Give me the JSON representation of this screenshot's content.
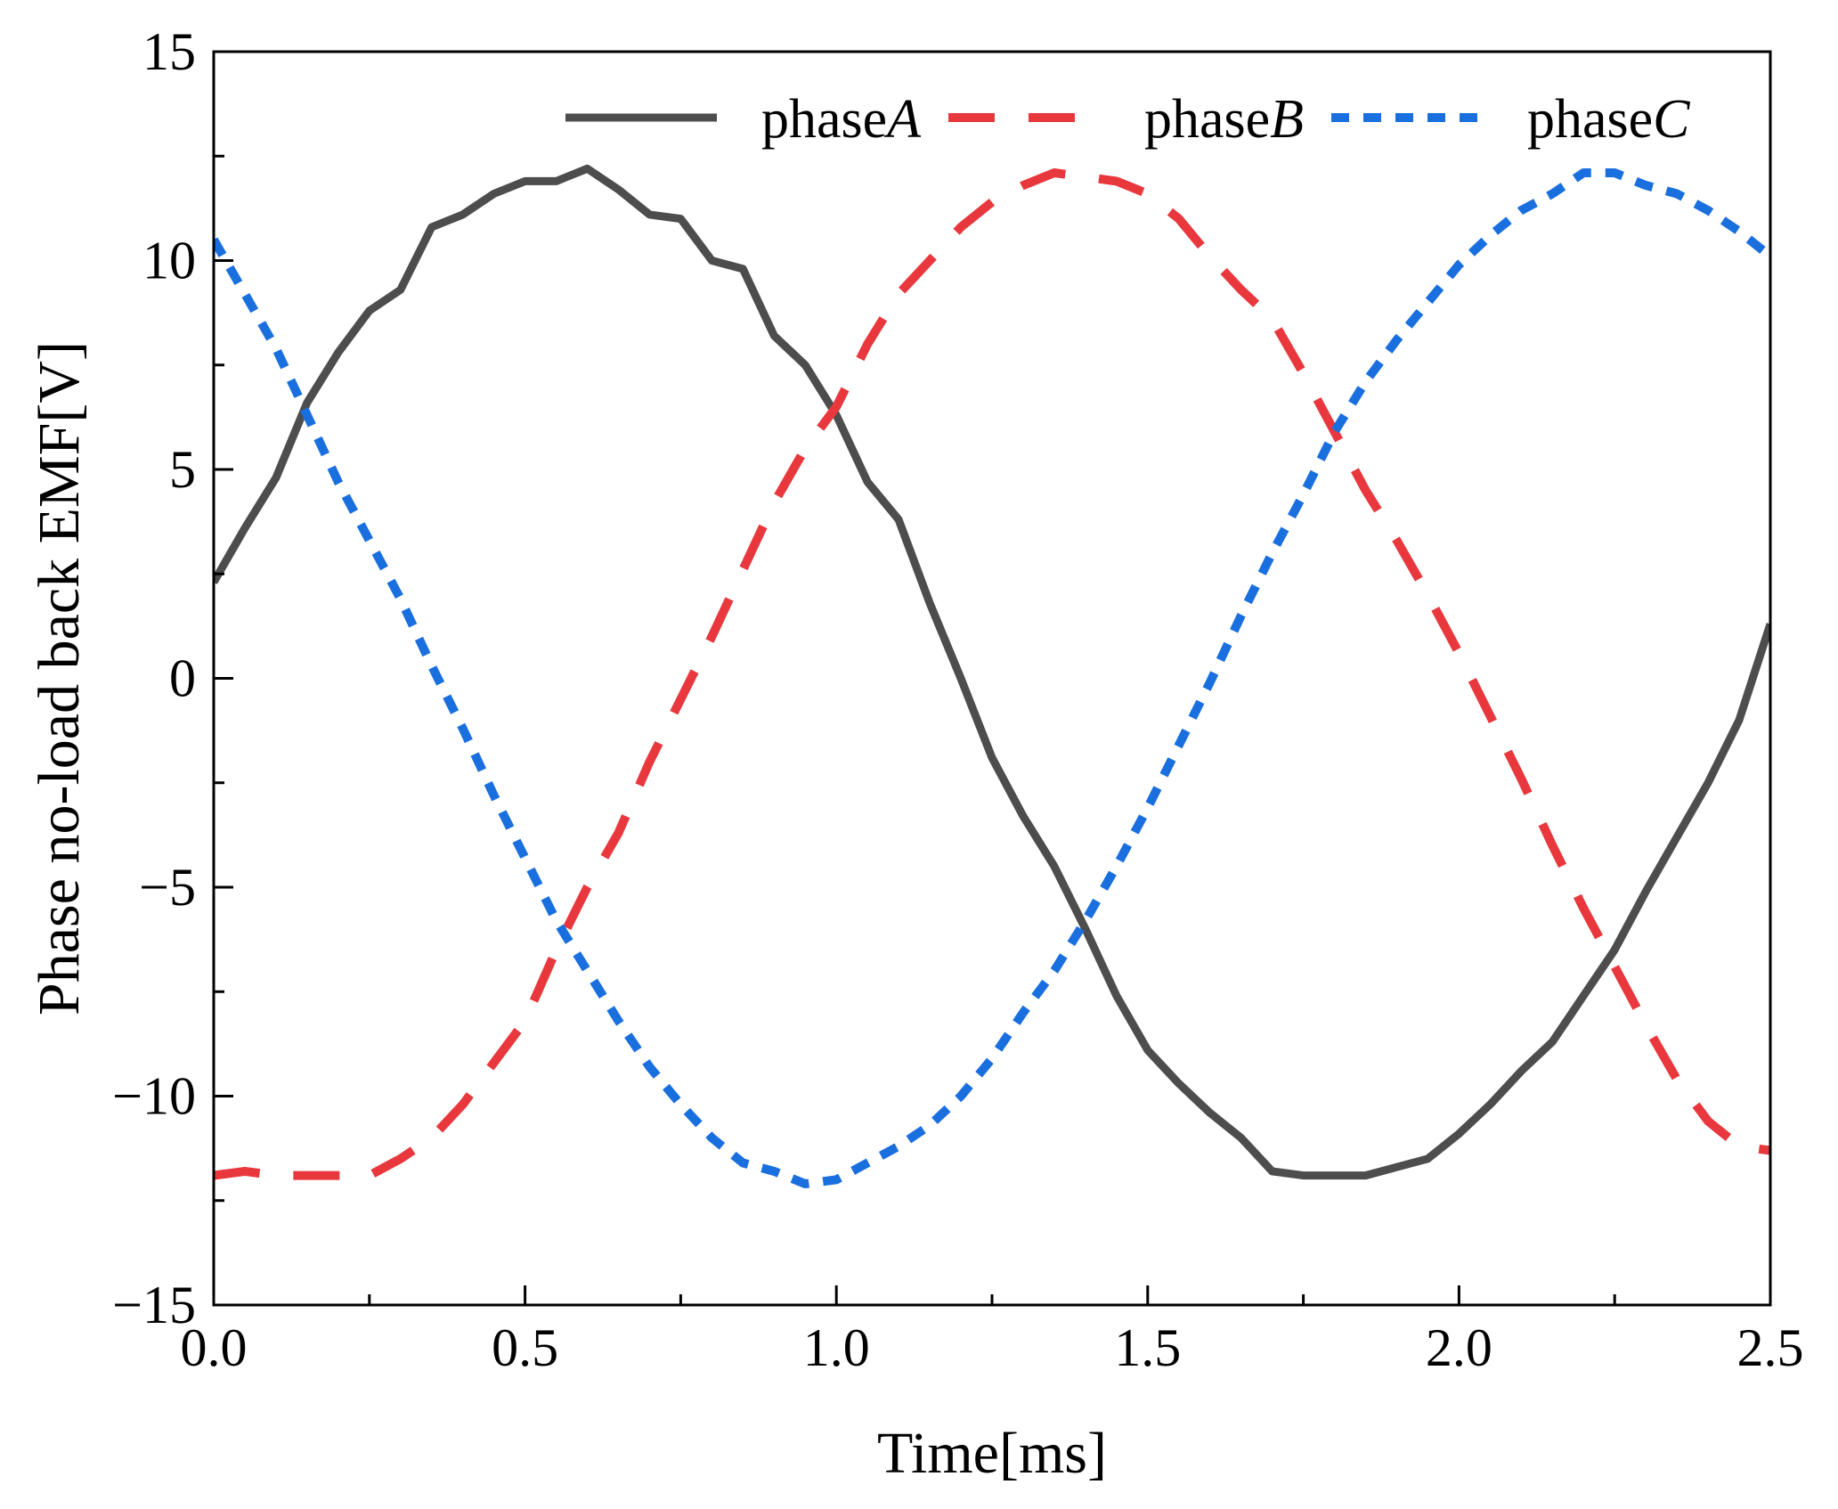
{
  "chart_data": {
    "type": "line",
    "title": "",
    "xlabel": "Time[ms]",
    "ylabel": "Phase no-load back EMF[V]",
    "xlim": [
      0,
      2.5
    ],
    "ylim": [
      -15,
      15
    ],
    "xticks": [
      "0.0",
      "0.5",
      "1.0",
      "1.5",
      "2.0",
      "2.5"
    ],
    "yticks": [
      "−15",
      "−10",
      "−5",
      "0",
      "5",
      "10",
      "15"
    ],
    "grid": false,
    "legend_position": "top-right",
    "series": [
      {
        "name": "phaseA",
        "label_prefix": "phase",
        "label_italic": "A",
        "color": "#4d4d4d",
        "style": "solid",
        "x": [
          0.0,
          0.05,
          0.1,
          0.15,
          0.2,
          0.25,
          0.3,
          0.35,
          0.4,
          0.45,
          0.5,
          0.55,
          0.6,
          0.65,
          0.7,
          0.75,
          0.8,
          0.85,
          0.9,
          0.95,
          1.0,
          1.05,
          1.1,
          1.15,
          1.2,
          1.25,
          1.3,
          1.35,
          1.4,
          1.45,
          1.5,
          1.55,
          1.6,
          1.65,
          1.7,
          1.75,
          1.8,
          1.85,
          1.9,
          1.95,
          2.0,
          2.05,
          2.1,
          2.15,
          2.2,
          2.25,
          2.3,
          2.35,
          2.4,
          2.45,
          2.5
        ],
        "y": [
          2.3,
          3.6,
          4.8,
          6.6,
          7.8,
          8.8,
          9.3,
          10.8,
          11.1,
          11.6,
          11.9,
          11.9,
          12.2,
          11.7,
          11.1,
          11.0,
          10.0,
          9.8,
          8.2,
          7.5,
          6.3,
          4.7,
          3.8,
          1.8,
          0.0,
          -1.9,
          -3.3,
          -4.5,
          -6.0,
          -7.6,
          -8.9,
          -9.7,
          -10.4,
          -11.0,
          -11.8,
          -11.9,
          -11.9,
          -11.9,
          -11.7,
          -11.5,
          -10.9,
          -10.2,
          -9.4,
          -8.7,
          -7.6,
          -6.5,
          -5.1,
          -3.8,
          -2.5,
          -1.0,
          1.3
        ]
      },
      {
        "name": "phaseB",
        "label_prefix": "phase",
        "label_italic": "B",
        "color": "#e8383d",
        "style": "dashed",
        "x": [
          0.0,
          0.05,
          0.1,
          0.15,
          0.2,
          0.25,
          0.3,
          0.35,
          0.4,
          0.45,
          0.5,
          0.55,
          0.6,
          0.65,
          0.7,
          0.75,
          0.8,
          0.85,
          0.9,
          0.95,
          1.0,
          1.05,
          1.1,
          1.15,
          1.2,
          1.25,
          1.3,
          1.35,
          1.4,
          1.45,
          1.5,
          1.55,
          1.6,
          1.65,
          1.7,
          1.75,
          1.8,
          1.85,
          1.9,
          1.95,
          2.0,
          2.05,
          2.1,
          2.15,
          2.2,
          2.25,
          2.3,
          2.35,
          2.4,
          2.45,
          2.5
        ],
        "y": [
          -11.9,
          -11.8,
          -11.9,
          -11.9,
          -11.9,
          -11.9,
          -11.5,
          -11.0,
          -10.2,
          -9.2,
          -8.2,
          -6.5,
          -5.0,
          -3.7,
          -2.0,
          -0.5,
          1.0,
          2.6,
          4.2,
          5.5,
          6.5,
          8.0,
          9.2,
          10.0,
          10.8,
          11.4,
          11.8,
          12.1,
          12.0,
          11.9,
          11.6,
          11.0,
          10.1,
          9.3,
          8.6,
          7.3,
          5.9,
          4.5,
          3.3,
          2.0,
          0.6,
          -0.9,
          -2.4,
          -4.0,
          -5.5,
          -6.9,
          -8.3,
          -9.6,
          -10.6,
          -11.2,
          -11.3
        ]
      },
      {
        "name": "phaseC",
        "label_prefix": "phase",
        "label_italic": "C",
        "color": "#1a6fdf",
        "style": "dotted",
        "x": [
          0.0,
          0.05,
          0.1,
          0.15,
          0.2,
          0.25,
          0.3,
          0.35,
          0.4,
          0.45,
          0.5,
          0.55,
          0.6,
          0.65,
          0.7,
          0.75,
          0.8,
          0.85,
          0.9,
          0.95,
          1.0,
          1.05,
          1.1,
          1.15,
          1.2,
          1.25,
          1.3,
          1.35,
          1.4,
          1.45,
          1.5,
          1.55,
          1.6,
          1.65,
          1.7,
          1.75,
          1.8,
          1.85,
          1.9,
          1.95,
          2.0,
          2.05,
          2.1,
          2.15,
          2.2,
          2.25,
          2.3,
          2.35,
          2.4,
          2.45,
          2.5
        ],
        "y": [
          10.5,
          9.2,
          7.9,
          6.3,
          4.7,
          3.3,
          1.9,
          0.3,
          -1.2,
          -2.8,
          -4.3,
          -5.8,
          -7.0,
          -8.2,
          -9.3,
          -10.2,
          -11.0,
          -11.6,
          -11.8,
          -12.1,
          -12.0,
          -11.6,
          -11.2,
          -10.7,
          -10.0,
          -9.1,
          -8.0,
          -7.0,
          -5.8,
          -4.5,
          -3.1,
          -1.6,
          -0.1,
          1.5,
          3.0,
          4.4,
          5.9,
          7.1,
          8.1,
          9.0,
          9.9,
          10.6,
          11.2,
          11.6,
          12.1,
          12.1,
          11.8,
          11.6,
          11.2,
          10.7,
          10.1
        ]
      }
    ]
  }
}
